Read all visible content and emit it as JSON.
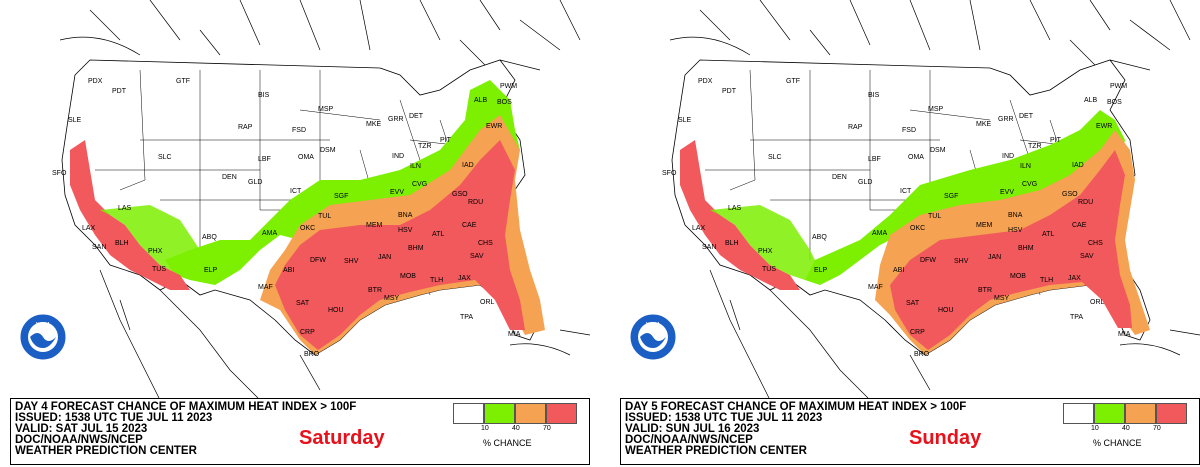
{
  "colors": {
    "c10": "#ffffff",
    "c40": "#7cf000",
    "c70": "#f5a352",
    "c100": "#f2595c",
    "day_text": "#e8101a",
    "noaa_blue": "#1c5fc4"
  },
  "legend": {
    "ticks": [
      "10",
      "40",
      "70"
    ],
    "title": "% CHANCE"
  },
  "panels": [
    {
      "line1": "DAY 4 FORECAST CHANCE OF MAXIMUM HEAT INDEX > 100F",
      "line2": "ISSUED: 1538 UTC TUE JUL 11 2023",
      "line3": "VALID: SAT JUL 15 2023",
      "line4": "DOC/NOAA/NWS/NCEP",
      "line5": "WEATHER PREDICTION CENTER",
      "day": "Saturday",
      "logo_text": "NOAA"
    },
    {
      "line1": "DAY 5 FORECAST CHANCE OF MAXIMUM HEAT INDEX > 100F",
      "line2": "ISSUED: 1538 UTC TUE JUL 11 2023",
      "line3": "VALID: SUN JUL 16 2023",
      "line4": "DOC/NOAA/NWS/NCEP",
      "line5": "WEATHER PREDICTION CENTER",
      "day": "Sunday",
      "logo_text": "NOAA"
    }
  ],
  "cities": [
    "PDX",
    "PDT",
    "GTF",
    "BIS",
    "MSP",
    "SLE",
    "RAP",
    "FSD",
    "MKE",
    "GRR",
    "DET",
    "ALB",
    "BOS",
    "PWM",
    "EWR",
    "DSM",
    "OMA",
    "LBF",
    "DEN",
    "GLD",
    "IND",
    "TZR",
    "ILN",
    "PIT",
    "SFO",
    "SLC",
    "ICT",
    "SGF",
    "EVV",
    "CVG",
    "IAD",
    "LAX",
    "SAN",
    "LAS",
    "BLH",
    "PHX",
    "TUS",
    "ABQ",
    "AMA",
    "OKC",
    "TUL",
    "MEM",
    "HSV",
    "BNA",
    "GSO",
    "RDU",
    "CAE",
    "CHS",
    "ATL",
    "BHM",
    "SAV",
    "JAN",
    "MOB",
    "TLH",
    "JAX",
    "ORL",
    "TPA",
    "MIA",
    "SHV",
    "DFW",
    "ABI",
    "ELP",
    "MAF",
    "SAT",
    "HOU",
    "BTR",
    "MSY",
    "CRP",
    "BRO"
  ]
}
